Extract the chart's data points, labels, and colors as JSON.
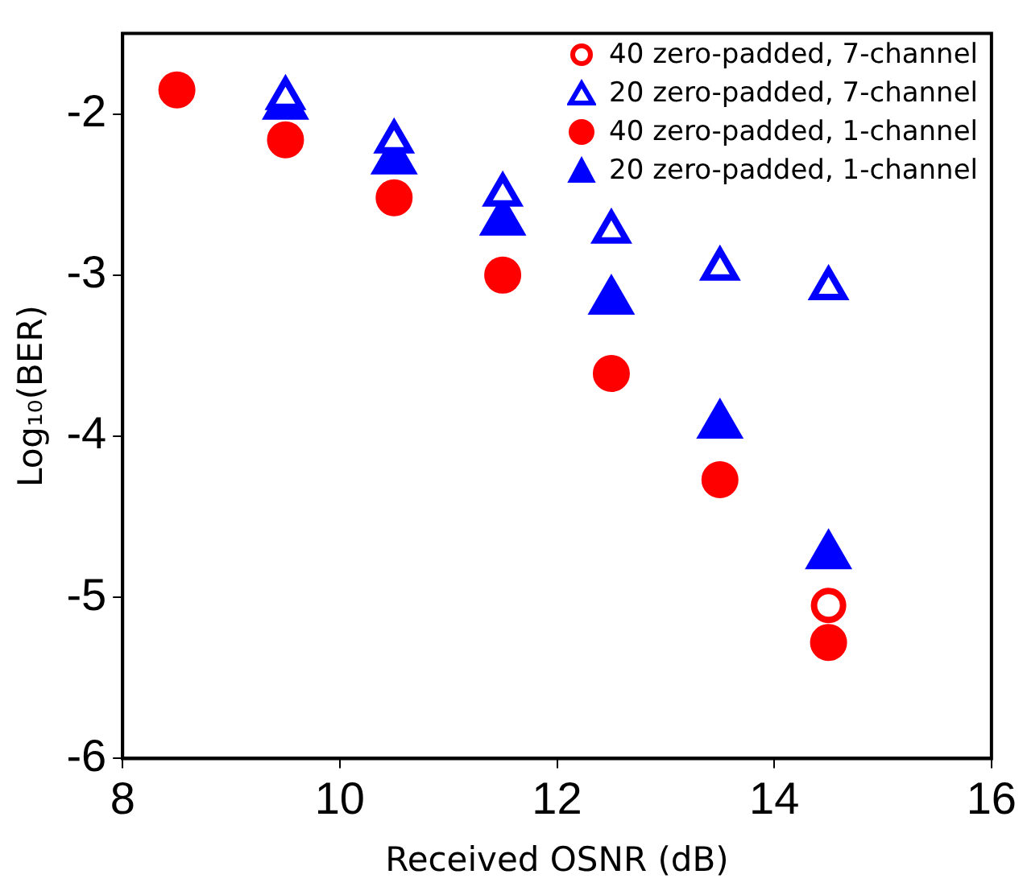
{
  "chart_data": {
    "type": "scatter",
    "xlabel": "Received OSNR (dB)",
    "ylabel": "Log₁₀(BER)",
    "xlim": [
      8,
      16
    ],
    "xticks": [
      8,
      10,
      12,
      14,
      16
    ],
    "ylim": [
      -6,
      -1.5
    ],
    "yticks": [
      -2,
      -3,
      -4,
      -5,
      -6
    ],
    "grid": false,
    "legend": "top right",
    "series": [
      {
        "name": "40 zero-padded, 7-channel",
        "color": "#ff0000",
        "marker": "circle-open",
        "x": [
          14.5
        ],
        "values": [
          -5.05
        ]
      },
      {
        "name": "20 zero-padded, 7-channel",
        "color": "#0000ff",
        "marker": "triangle-open",
        "x": [
          9.5,
          10.5,
          11.5,
          12.5,
          13.5,
          14.5
        ],
        "values": [
          -1.9,
          -2.17,
          -2.5,
          -2.73,
          -2.96,
          -3.08
        ]
      },
      {
        "name": "40 zero-padded, 1-channel",
        "color": "#ff0000",
        "marker": "circle",
        "x": [
          8.5,
          9.5,
          10.5,
          11.5,
          12.5,
          13.5,
          14.5
        ],
        "values": [
          -1.85,
          -2.16,
          -2.52,
          -3.0,
          -3.61,
          -4.27,
          -5.28
        ]
      },
      {
        "name": "20 zero-padded, 1-channel",
        "color": "#0000ff",
        "marker": "triangle",
        "x": [
          9.5,
          10.5,
          11.5,
          12.5,
          13.5,
          14.5
        ],
        "values": [
          -1.95,
          -2.29,
          -2.67,
          -3.16,
          -3.93,
          -4.74
        ]
      }
    ]
  }
}
